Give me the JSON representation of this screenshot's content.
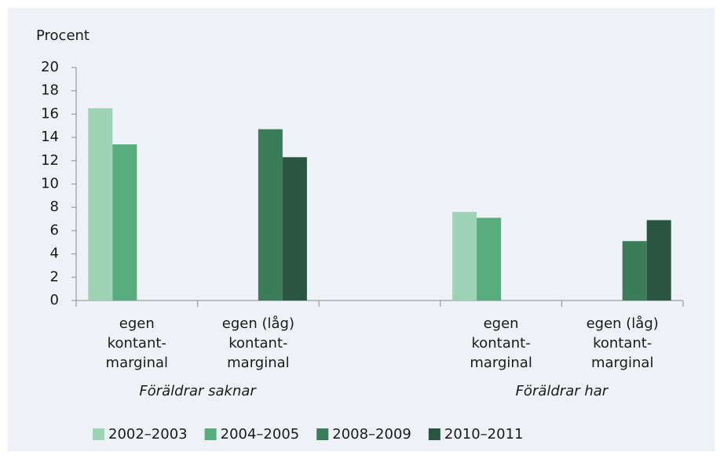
{
  "chart_data": {
    "type": "bar",
    "y_label": "Procent",
    "categories": [
      [
        "egen",
        "kontant-",
        "marginal"
      ],
      [
        "egen (låg)",
        "kontant-",
        "marginal"
      ],
      null,
      [
        "egen",
        "kontant-",
        "marginal"
      ],
      [
        "egen (låg)",
        "kontant-",
        "marginal"
      ]
    ],
    "group_labels": [
      "Föräldrar saknar",
      "Föräldrar har"
    ],
    "series": [
      {
        "name": "2002–2003",
        "color": "#9fd3b6",
        "values": [
          16.5,
          null,
          null,
          7.6,
          null
        ]
      },
      {
        "name": "2004–2005",
        "color": "#58ad7e",
        "values": [
          13.4,
          null,
          null,
          7.1,
          null
        ]
      },
      {
        "name": "2008–2009",
        "color": "#3b7c59",
        "values": [
          null,
          14.7,
          null,
          null,
          5.1
        ]
      },
      {
        "name": "2010–2011",
        "color": "#2a5540",
        "values": [
          null,
          12.3,
          null,
          null,
          6.9
        ]
      }
    ],
    "ylim": [
      0,
      20
    ],
    "yticks": [
      0,
      2,
      4,
      6,
      8,
      10,
      12,
      14,
      16,
      18,
      20
    ],
    "legend": "bottom"
  }
}
